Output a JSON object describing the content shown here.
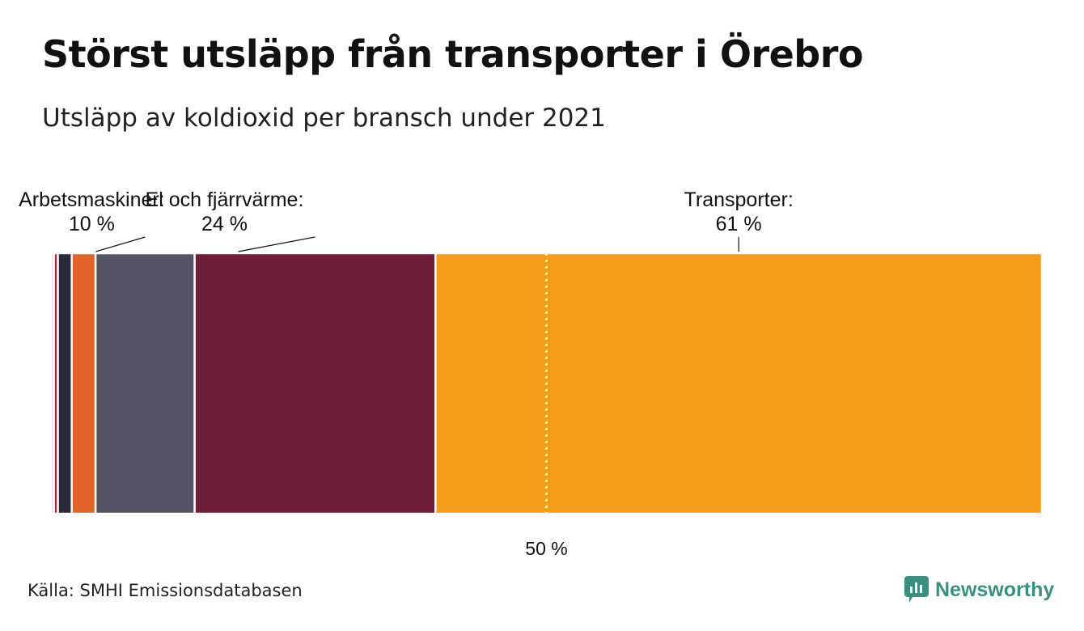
{
  "title": "Störst utsläpp från transporter i Örebro",
  "subtitle": "Utsläpp av koldioxid per bransch under 2021",
  "source": "Källa: SMHI Emissionsdatabasen",
  "brand": {
    "name": "Newsworthy",
    "icon": "newsworthy-logo-icon",
    "color": "#3b8f80"
  },
  "chart_data": {
    "type": "bar",
    "stacked_100_percent": true,
    "orientation": "horizontal",
    "xlim": [
      0,
      100
    ],
    "unit": "%",
    "segments": [
      {
        "value": 0.3,
        "color": "#d9d9d9",
        "label": "",
        "value_label": ""
      },
      {
        "value": 0.4,
        "color": "#b5263a",
        "label": "",
        "value_label": ""
      },
      {
        "value": 1.4,
        "color": "#2b2a3a",
        "label": "",
        "value_label": ""
      },
      {
        "value": 2.4,
        "color": "#e0622d",
        "label": "",
        "value_label": ""
      },
      {
        "value": 10,
        "color": "#575565",
        "label": "Arbetsmaskiner:",
        "value_label": "10 %"
      },
      {
        "value": 24.3,
        "color": "#701d3b",
        "label": "El och fjärrvärme:",
        "value_label": "24 %"
      },
      {
        "value": 61.2,
        "color": "#f59c1a",
        "label": "Transporter:",
        "value_label": "61 %"
      }
    ],
    "reference_line": {
      "value": 50,
      "label": "50 %"
    }
  }
}
